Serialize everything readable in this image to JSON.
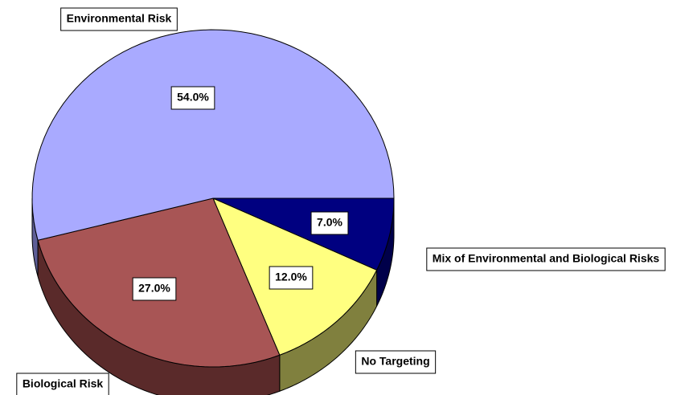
{
  "chart_data": {
    "type": "pie3d",
    "categories": [
      "Mix of Environmental and Biological Risks",
      "No Targeting",
      "Biological Risk",
      "Environmental Risk"
    ],
    "values": [
      7.0,
      12.0,
      27.0,
      54.0
    ],
    "value_labels": [
      "7.0%",
      "12.0%",
      "27.0%",
      "54.0%"
    ],
    "colors": [
      "#000080",
      "#ffff80",
      "#a85555",
      "#a9aaff"
    ],
    "side_colors": [
      "#00004a",
      "#80803e",
      "#5a2a2a",
      "#5e5e96"
    ]
  }
}
